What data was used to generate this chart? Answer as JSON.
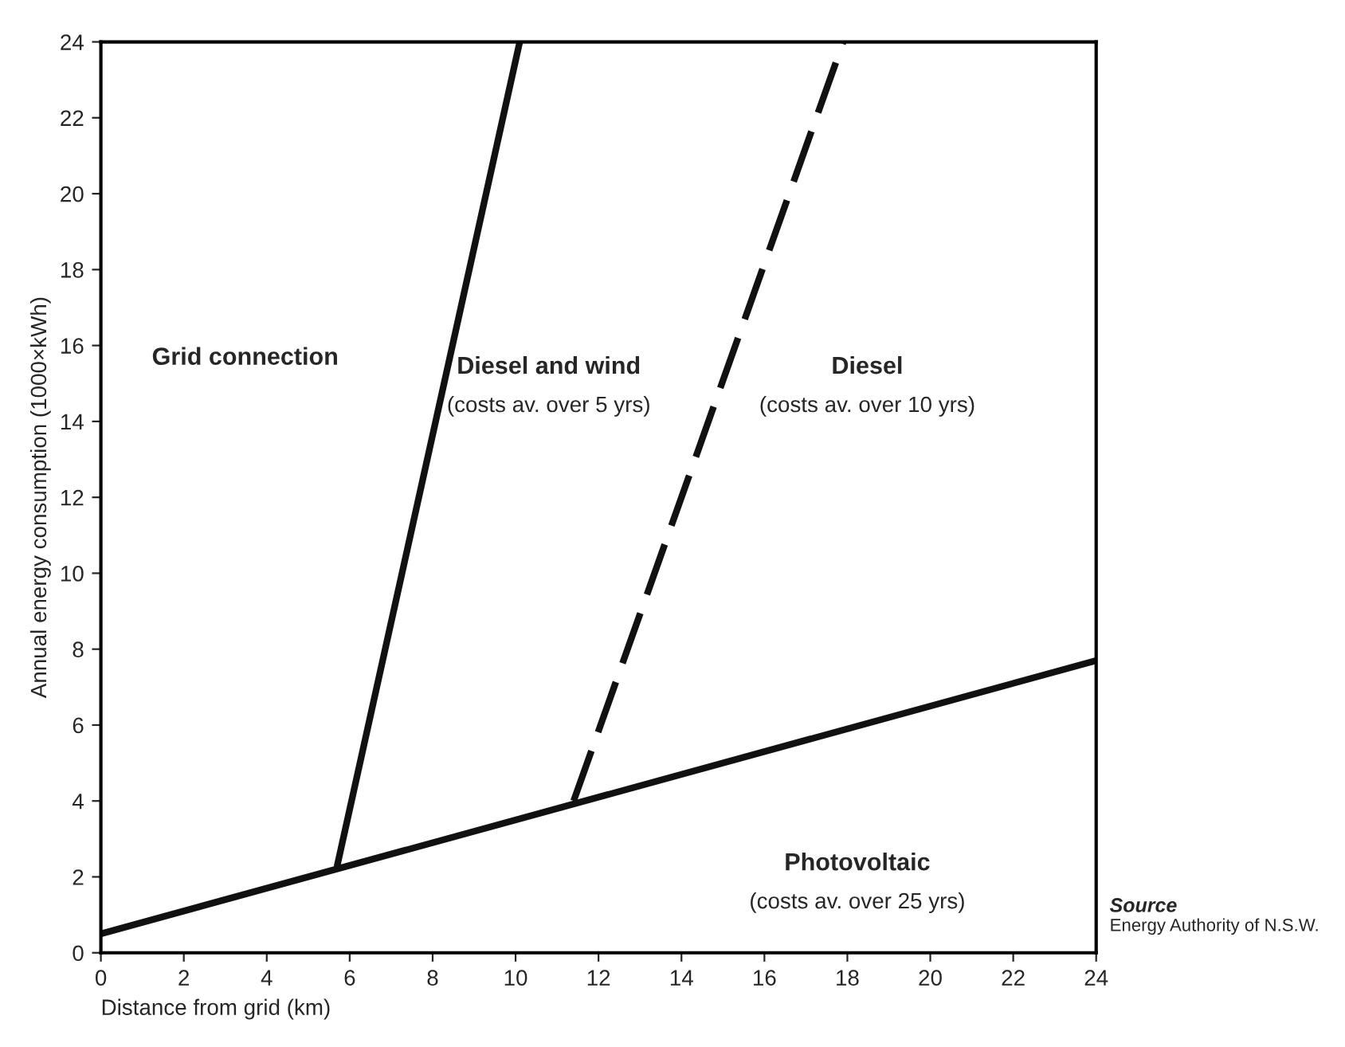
{
  "chart_data": {
    "type": "line",
    "xlabel": "Distance from grid (km)",
    "ylabel": "Annual energy consumption (1000×kWh)",
    "xlim": [
      0,
      24
    ],
    "ylim": [
      0,
      24
    ],
    "xticks": [
      0,
      2,
      4,
      6,
      8,
      10,
      12,
      14,
      16,
      18,
      20,
      22,
      24
    ],
    "yticks": [
      0,
      2,
      4,
      6,
      8,
      10,
      12,
      14,
      16,
      18,
      20,
      22,
      24
    ],
    "grid": false,
    "marker": "none",
    "series": [
      {
        "color": "#111111",
        "x": [
          0,
          24
        ],
        "values": [
          0.5,
          7.7
        ],
        "line_style": "solid"
      },
      {
        "color": "#111111",
        "x": [
          5.7,
          10.1
        ],
        "values": [
          2.3,
          24
        ],
        "line_style": "solid"
      },
      {
        "color": "#111111",
        "x": [
          11.4,
          17.9
        ],
        "values": [
          4.0,
          24
        ],
        "line_style": "dashed"
      }
    ],
    "annotations": [
      "Grid connection",
      "Diesel and wind\n(costs av. over 5 yrs)",
      "Diesel\n(costs av. over 10 yrs)",
      "Photovoltaic\n(costs av. over 25 yrs)",
      "Source\nEnergy Authority of N.S.W."
    ]
  }
}
